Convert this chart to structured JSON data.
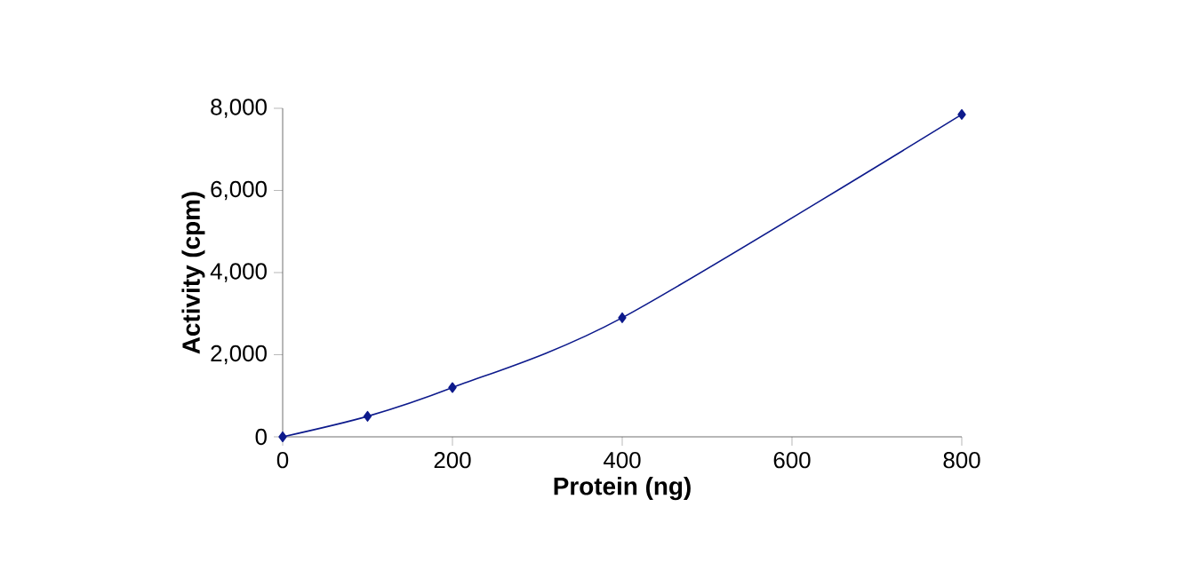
{
  "chart_data": {
    "type": "line",
    "xlabel": "Protein (ng)",
    "ylabel": "Activity (cpm)",
    "x": [
      0,
      100,
      200,
      400,
      800
    ],
    "series": [
      {
        "color": "#0d1a8c",
        "values": [
          0,
          500,
          1200,
          2900,
          7850
        ]
      }
    ],
    "xlim": [
      0,
      800
    ],
    "xticks": [
      0,
      200,
      400,
      600,
      800
    ],
    "ylim": [
      0,
      8000
    ],
    "yticks": [
      0,
      {
        "value": 2000,
        "label": "2,000"
      },
      {
        "value": 4000,
        "label": "4,000"
      },
      {
        "value": 6000,
        "label": "6,000"
      },
      {
        "value": 8000,
        "label": "8,000"
      }
    ],
    "marker": "diamond",
    "line_style": "solid"
  }
}
